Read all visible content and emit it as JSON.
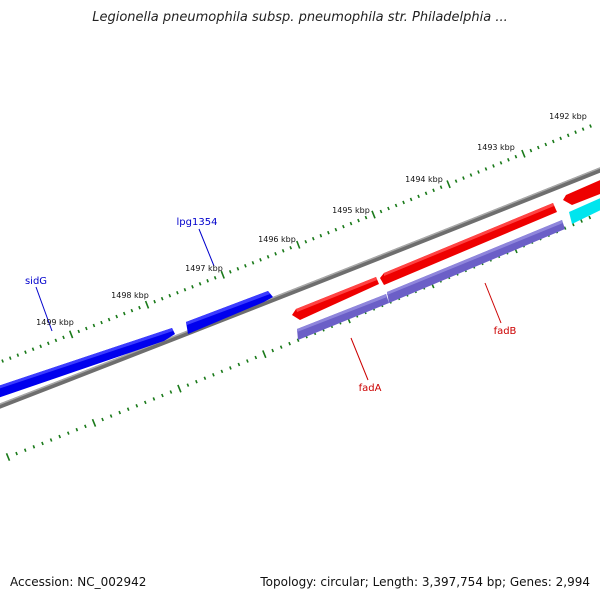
{
  "title": "Legionella pneumophila subsp. pneumophila str. Philadelphia ...",
  "accession": "Accession: NC_002942",
  "summary": "Topology: circular; Length: 3,397,754 bp; Genes: 2,994",
  "ruler_labels": [
    "1499 kbp",
    "1498 kbp",
    "1497 kbp",
    "1496 kbp",
    "1495 kbp",
    "1494 kbp",
    "1493 kbp",
    "1492 kbp"
  ],
  "genes": [
    {
      "name": "sidG",
      "color": "#0000cc"
    },
    {
      "name": "lpg1354",
      "color": "#0000cc"
    },
    {
      "name": "fadA",
      "color": "#cc0000"
    },
    {
      "name": "fadB",
      "color": "#cc0000"
    }
  ],
  "colors": {
    "forward_gene": "#0000ee",
    "reverse_gene_red": "#ee0000",
    "reverse_gene_purple": "#6b5fc7",
    "other_gene": "#00e5ee",
    "backbone": "#808080",
    "ticks": "#1a7a1a"
  }
}
